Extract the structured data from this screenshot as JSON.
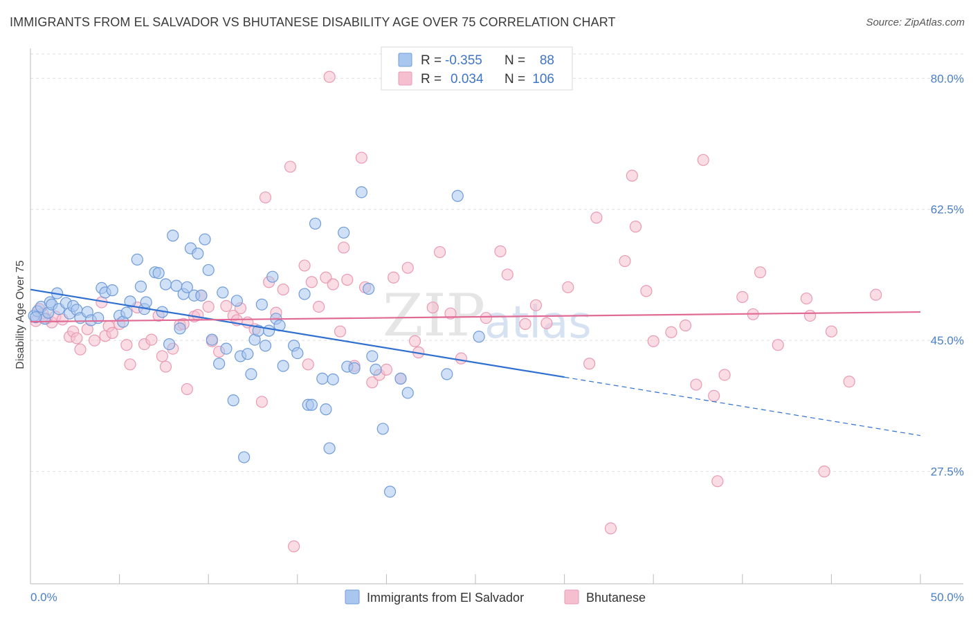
{
  "header": {
    "title": "IMMIGRANTS FROM EL SALVADOR VS BHUTANESE DISABILITY AGE OVER 75 CORRELATION CHART",
    "source": "Source: ZipAtlas.com"
  },
  "watermark": {
    "zip": "ZIP",
    "atlas": "atlas"
  },
  "legend": {
    "rows": [
      {
        "r_label": "R =",
        "r_value": "-0.355",
        "n_label": "N =",
        "n_value": "88"
      },
      {
        "r_label": "R =",
        "r_value": "0.034",
        "n_label": "N =",
        "n_value": "106"
      }
    ]
  },
  "colors": {
    "blue_fill": "#a9c7ee",
    "blue_stroke": "#6f9bd8",
    "blue_line": "#2e6fd0",
    "pink_fill": "#f5bfd0",
    "pink_stroke": "#e99ab3",
    "pink_line": "#e06a94",
    "grid": "#dddddd",
    "tick_text": "#4a7fc8"
  },
  "chart_data": {
    "type": "scatter",
    "title": "IMMIGRANTS FROM EL SALVADOR VS BHUTANESE DISABILITY AGE OVER 75 CORRELATION CHART",
    "xlabel": "",
    "ylabel": "Disability Age Over 75",
    "xlim": [
      0,
      50
    ],
    "ylim": [
      12.5,
      84
    ],
    "x_tick_labels": [
      "0.0%",
      "50.0%"
    ],
    "y_ticks": [
      27.5,
      45.0,
      62.5,
      80.0
    ],
    "y_tick_labels": [
      "27.5%",
      "45.0%",
      "62.5%",
      "80.0%"
    ],
    "grid": true,
    "legend_position": "top-center",
    "series": [
      {
        "name": "Immigrants from El Salvador",
        "R": -0.355,
        "N": 88,
        "trend": {
          "x0": 0,
          "y0": 51.8,
          "x1": 30,
          "y1": 40.1,
          "dashed_to_x": 50,
          "dashed_to_y": 32.3
        },
        "points": [
          [
            0.2,
            48.3
          ],
          [
            0.4,
            48.9
          ],
          [
            0.6,
            49.5
          ],
          [
            0.8,
            47.9
          ],
          [
            1.0,
            48.7
          ],
          [
            1.1,
            50.1
          ],
          [
            1.2,
            49.8
          ],
          [
            1.5,
            51.3
          ],
          [
            1.6,
            49.2
          ],
          [
            2.0,
            50.0
          ],
          [
            2.2,
            48.6
          ],
          [
            2.4,
            49.6
          ],
          [
            2.6,
            49.1
          ],
          [
            2.8,
            48.0
          ],
          [
            3.2,
            48.8
          ],
          [
            3.4,
            47.7
          ],
          [
            3.8,
            48.0
          ],
          [
            4.0,
            52.0
          ],
          [
            4.2,
            51.4
          ],
          [
            4.6,
            51.7
          ],
          [
            5.0,
            48.3
          ],
          [
            5.2,
            47.5
          ],
          [
            5.4,
            48.7
          ],
          [
            5.6,
            50.2
          ],
          [
            6.0,
            55.8
          ],
          [
            6.2,
            52.2
          ],
          [
            6.4,
            49.2
          ],
          [
            6.5,
            50.1
          ],
          [
            7.0,
            54.1
          ],
          [
            7.2,
            54.0
          ],
          [
            7.4,
            48.8
          ],
          [
            7.6,
            52.5
          ],
          [
            7.8,
            44.5
          ],
          [
            8.0,
            59.0
          ],
          [
            8.2,
            52.3
          ],
          [
            8.4,
            46.6
          ],
          [
            8.6,
            51.2
          ],
          [
            8.8,
            52.1
          ],
          [
            9.0,
            57.3
          ],
          [
            9.2,
            51.0
          ],
          [
            9.4,
            56.6
          ],
          [
            9.6,
            51.0
          ],
          [
            9.8,
            58.5
          ],
          [
            10.0,
            54.4
          ],
          [
            10.2,
            45.1
          ],
          [
            10.6,
            41.9
          ],
          [
            10.8,
            51.4
          ],
          [
            11.0,
            43.9
          ],
          [
            11.4,
            37.0
          ],
          [
            11.6,
            50.3
          ],
          [
            11.8,
            42.9
          ],
          [
            12.0,
            29.4
          ],
          [
            12.2,
            43.2
          ],
          [
            12.4,
            40.5
          ],
          [
            12.6,
            45.1
          ],
          [
            12.8,
            46.3
          ],
          [
            13.0,
            49.8
          ],
          [
            13.2,
            44.3
          ],
          [
            13.4,
            46.3
          ],
          [
            13.6,
            53.5
          ],
          [
            13.8,
            47.9
          ],
          [
            14.0,
            47.0
          ],
          [
            14.2,
            41.6
          ],
          [
            14.8,
            44.3
          ],
          [
            15.0,
            43.3
          ],
          [
            15.4,
            51.2
          ],
          [
            15.6,
            36.4
          ],
          [
            15.8,
            36.4
          ],
          [
            16.0,
            60.6
          ],
          [
            16.4,
            39.9
          ],
          [
            16.6,
            35.8
          ],
          [
            16.8,
            30.6
          ],
          [
            17.0,
            39.8
          ],
          [
            17.6,
            59.4
          ],
          [
            17.8,
            41.5
          ],
          [
            18.2,
            41.3
          ],
          [
            18.6,
            64.8
          ],
          [
            19.0,
            51.9
          ],
          [
            19.2,
            42.9
          ],
          [
            19.4,
            41.1
          ],
          [
            19.8,
            33.2
          ],
          [
            20.2,
            24.8
          ],
          [
            20.8,
            39.9
          ],
          [
            21.2,
            38.0
          ],
          [
            23.4,
            40.5
          ],
          [
            24.0,
            64.3
          ],
          [
            25.2,
            45.5
          ],
          [
            0.3,
            48.1
          ]
        ]
      },
      {
        "name": "Bhutanese",
        "R": 0.034,
        "N": 106,
        "trend": {
          "x0": 0,
          "y0": 47.5,
          "x1": 50,
          "y1": 48.8
        },
        "points": [
          [
            0.3,
            47.6
          ],
          [
            0.5,
            49.2
          ],
          [
            0.7,
            48.6
          ],
          [
            0.9,
            47.9
          ],
          [
            1.2,
            47.4
          ],
          [
            1.4,
            48.2
          ],
          [
            1.8,
            47.8
          ],
          [
            2.2,
            45.5
          ],
          [
            2.4,
            46.2
          ],
          [
            2.6,
            45.3
          ],
          [
            2.8,
            43.8
          ],
          [
            3.2,
            46.5
          ],
          [
            3.6,
            45.0
          ],
          [
            4.0,
            50.1
          ],
          [
            4.2,
            45.6
          ],
          [
            4.4,
            46.9
          ],
          [
            4.6,
            46.0
          ],
          [
            5.0,
            47.2
          ],
          [
            5.4,
            44.4
          ],
          [
            5.6,
            41.8
          ],
          [
            6.0,
            49.4
          ],
          [
            6.4,
            44.5
          ],
          [
            6.8,
            45.1
          ],
          [
            7.2,
            48.3
          ],
          [
            7.4,
            42.9
          ],
          [
            7.6,
            41.5
          ],
          [
            8.0,
            43.9
          ],
          [
            8.4,
            47.1
          ],
          [
            8.6,
            47.2
          ],
          [
            8.8,
            38.5
          ],
          [
            9.2,
            48.2
          ],
          [
            9.4,
            48.4
          ],
          [
            9.6,
            51.0
          ],
          [
            10.0,
            49.5
          ],
          [
            10.2,
            44.9
          ],
          [
            10.6,
            43.5
          ],
          [
            11.0,
            49.6
          ],
          [
            11.4,
            48.3
          ],
          [
            11.6,
            47.7
          ],
          [
            11.8,
            49.3
          ],
          [
            12.2,
            47.4
          ],
          [
            12.6,
            46.5
          ],
          [
            13.0,
            36.8
          ],
          [
            13.2,
            64.1
          ],
          [
            13.4,
            52.8
          ],
          [
            13.8,
            48.7
          ],
          [
            14.2,
            51.8
          ],
          [
            14.6,
            68.2
          ],
          [
            14.8,
            17.5
          ],
          [
            15.4,
            55.0
          ],
          [
            15.6,
            41.8
          ],
          [
            15.8,
            52.8
          ],
          [
            16.2,
            49.5
          ],
          [
            16.6,
            53.4
          ],
          [
            16.8,
            80.2
          ],
          [
            17.0,
            52.5
          ],
          [
            17.4,
            46.2
          ],
          [
            17.6,
            57.4
          ],
          [
            17.8,
            53.1
          ],
          [
            18.2,
            41.6
          ],
          [
            18.6,
            69.4
          ],
          [
            18.8,
            52.1
          ],
          [
            19.2,
            39.4
          ],
          [
            19.6,
            40.4
          ],
          [
            20.0,
            41.1
          ],
          [
            20.4,
            53.4
          ],
          [
            20.8,
            39.9
          ],
          [
            21.2,
            54.7
          ],
          [
            21.6,
            44.9
          ],
          [
            21.8,
            43.4
          ],
          [
            22.6,
            49.4
          ],
          [
            23.0,
            56.8
          ],
          [
            23.6,
            48.6
          ],
          [
            24.2,
            42.6
          ],
          [
            25.6,
            48.0
          ],
          [
            26.4,
            56.9
          ],
          [
            26.8,
            53.8
          ],
          [
            27.8,
            47.2
          ],
          [
            28.4,
            49.7
          ],
          [
            29.0,
            47.3
          ],
          [
            30.2,
            52.1
          ],
          [
            31.4,
            41.9
          ],
          [
            31.8,
            61.4
          ],
          [
            32.6,
            19.9
          ],
          [
            33.4,
            55.6
          ],
          [
            33.8,
            67.0
          ],
          [
            34.0,
            60.2
          ],
          [
            34.6,
            51.6
          ],
          [
            35.0,
            44.9
          ],
          [
            36.0,
            46.1
          ],
          [
            36.8,
            47.0
          ],
          [
            37.4,
            39.1
          ],
          [
            37.8,
            69.1
          ],
          [
            38.4,
            37.6
          ],
          [
            38.6,
            26.2
          ],
          [
            39.0,
            40.4
          ],
          [
            40.0,
            50.8
          ],
          [
            40.6,
            48.5
          ],
          [
            41.0,
            54.1
          ],
          [
            42.0,
            44.4
          ],
          [
            43.6,
            50.6
          ],
          [
            43.8,
            48.3
          ],
          [
            44.6,
            27.5
          ],
          [
            45.0,
            46.2
          ],
          [
            46.0,
            39.5
          ],
          [
            47.5,
            51.1
          ]
        ]
      }
    ]
  }
}
